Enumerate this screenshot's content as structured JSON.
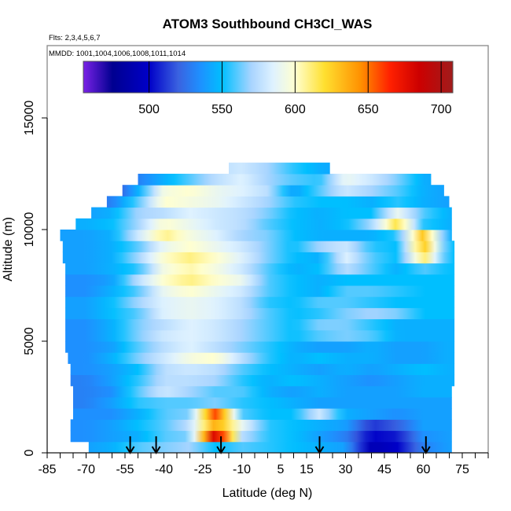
{
  "chart_data": {
    "type": "heatmap",
    "title": "ATOM3 Southbound CH3Cl_WAS",
    "subtitle": "Flts: 2,3,4,5,6,7",
    "annotation": "MMDD: 1001,1004,1006,1008,1011,1014",
    "xlabel": "Latitude (deg N)",
    "ylabel": "Altitude (m)",
    "xlim": [
      -85,
      85
    ],
    "ylim": [
      0,
      18200
    ],
    "xticks": [
      -85,
      -70,
      -55,
      -40,
      -25,
      -10,
      5,
      15,
      30,
      45,
      60,
      75
    ],
    "xminor_step": 5,
    "yticks": [
      0,
      5000,
      10000,
      15000
    ],
    "colorbar": {
      "range": [
        455,
        708
      ],
      "ticks": [
        500,
        550,
        600,
        650,
        700
      ],
      "colors": [
        [
          455,
          "#7a22e6"
        ],
        [
          475,
          "#000090"
        ],
        [
          500,
          "#0000c8"
        ],
        [
          520,
          "#3a62e0"
        ],
        [
          535,
          "#1e90ff"
        ],
        [
          550,
          "#00bfff"
        ],
        [
          570,
          "#a8d4ff"
        ],
        [
          585,
          "#dff2ff"
        ],
        [
          600,
          "#ffffd0"
        ],
        [
          620,
          "#ffe030"
        ],
        [
          645,
          "#ff9000"
        ],
        [
          665,
          "#ff2000"
        ],
        [
          685,
          "#cc0000"
        ],
        [
          708,
          "#a01c1c"
        ]
      ]
    },
    "grid_lats": [
      -80,
      -70,
      -60,
      -50,
      -40,
      -30,
      -20,
      -10,
      0,
      10,
      20,
      30,
      40,
      50,
      60,
      70
    ],
    "altitude_bin_m": 500,
    "rows": [
      {
        "alt": [
          0,
          500
        ],
        "extent": [
          -69,
          71
        ],
        "values": [
          540,
          540,
          545,
          560,
          565,
          570,
          550,
          560,
          555,
          550,
          545,
          540,
          490,
          500,
          530,
          540
        ]
      },
      {
        "alt": [
          500,
          1000
        ],
        "extent": [
          -76,
          71
        ],
        "values": [
          535,
          535,
          540,
          545,
          560,
          565,
          690,
          575,
          555,
          550,
          540,
          530,
          500,
          505,
          535,
          540
        ]
      },
      {
        "alt": [
          1000,
          1500
        ],
        "extent": [
          -76,
          71
        ],
        "values": [
          535,
          535,
          540,
          550,
          560,
          575,
          640,
          590,
          555,
          550,
          545,
          540,
          510,
          520,
          540,
          540
        ]
      },
      {
        "alt": [
          1500,
          2000
        ],
        "extent": [
          -75,
          71
        ],
        "values": [
          535,
          535,
          535,
          545,
          560,
          565,
          660,
          560,
          550,
          550,
          580,
          545,
          540,
          535,
          540,
          540
        ]
      },
      {
        "alt": [
          2000,
          2500
        ],
        "extent": [
          -75,
          71
        ],
        "values": [
          530,
          530,
          540,
          555,
          560,
          560,
          565,
          555,
          550,
          545,
          540,
          540,
          540,
          540,
          540,
          540
        ]
      },
      {
        "alt": [
          2500,
          3000
        ],
        "extent": [
          -75,
          71
        ],
        "values": [
          530,
          530,
          535,
          560,
          580,
          570,
          560,
          560,
          545,
          540,
          545,
          540,
          540,
          540,
          545,
          545
        ]
      },
      {
        "alt": [
          3000,
          3500
        ],
        "extent": [
          -76,
          72
        ],
        "values": [
          530,
          530,
          540,
          555,
          575,
          575,
          570,
          555,
          545,
          550,
          545,
          540,
          535,
          540,
          545,
          545
        ]
      },
      {
        "alt": [
          3500,
          4000
        ],
        "extent": [
          -76,
          72
        ],
        "values": [
          535,
          535,
          540,
          550,
          575,
          580,
          575,
          560,
          550,
          545,
          540,
          545,
          540,
          545,
          550,
          545
        ]
      },
      {
        "alt": [
          4000,
          4500
        ],
        "extent": [
          -77,
          72
        ],
        "values": [
          535,
          535,
          545,
          565,
          580,
          595,
          600,
          575,
          555,
          545,
          550,
          545,
          545,
          540,
          540,
          545
        ]
      },
      {
        "alt": [
          4500,
          5000
        ],
        "extent": [
          -78,
          72
        ],
        "values": [
          535,
          535,
          540,
          560,
          575,
          585,
          575,
          565,
          555,
          545,
          540,
          540,
          545,
          540,
          540,
          545
        ]
      },
      {
        "alt": [
          5000,
          5500
        ],
        "extent": [
          -78,
          72
        ],
        "values": [
          535,
          535,
          545,
          565,
          580,
          585,
          580,
          570,
          560,
          550,
          560,
          565,
          560,
          545,
          545,
          545
        ]
      },
      {
        "alt": [
          5500,
          6000
        ],
        "extent": [
          -78,
          72
        ],
        "values": [
          535,
          535,
          545,
          565,
          575,
          585,
          580,
          570,
          560,
          550,
          565,
          565,
          555,
          545,
          545,
          545
        ]
      },
      {
        "alt": [
          6000,
          6500
        ],
        "extent": [
          -78,
          72
        ],
        "values": [
          540,
          540,
          550,
          560,
          585,
          590,
          585,
          575,
          560,
          550,
          555,
          565,
          570,
          565,
          550,
          550
        ]
      },
      {
        "alt": [
          6500,
          7000
        ],
        "extent": [
          -78,
          72
        ],
        "values": [
          540,
          540,
          550,
          570,
          585,
          590,
          585,
          575,
          555,
          550,
          560,
          560,
          555,
          550,
          550,
          550
        ]
      },
      {
        "alt": [
          7000,
          7500
        ],
        "extent": [
          -78,
          72
        ],
        "values": [
          535,
          535,
          545,
          560,
          590,
          600,
          590,
          580,
          560,
          550,
          545,
          560,
          560,
          555,
          550,
          550
        ]
      },
      {
        "alt": [
          7500,
          8000
        ],
        "extent": [
          -78,
          72
        ],
        "values": [
          535,
          535,
          540,
          575,
          600,
          610,
          600,
          590,
          560,
          550,
          545,
          550,
          550,
          550,
          550,
          550
        ]
      },
      {
        "alt": [
          8000,
          8500
        ],
        "extent": [
          -78,
          72
        ],
        "values": [
          540,
          540,
          545,
          555,
          595,
          605,
          595,
          580,
          560,
          545,
          550,
          575,
          560,
          545,
          560,
          550
        ]
      },
      {
        "alt": [
          8500,
          9000
        ],
        "extent": [
          -79,
          72
        ],
        "values": [
          540,
          540,
          545,
          570,
          600,
          610,
          600,
          585,
          565,
          550,
          545,
          585,
          560,
          550,
          615,
          550
        ]
      },
      {
        "alt": [
          9000,
          9500
        ],
        "extent": [
          -79,
          72
        ],
        "values": [
          540,
          540,
          545,
          560,
          590,
          600,
          590,
          580,
          565,
          550,
          570,
          580,
          555,
          550,
          630,
          550
        ]
      },
      {
        "alt": [
          9500,
          10000
        ],
        "extent": [
          -80,
          71
        ],
        "values": [
          540,
          540,
          545,
          580,
          610,
          595,
          585,
          570,
          565,
          550,
          545,
          545,
          545,
          555,
          630,
          545
        ]
      },
      {
        "alt": [
          10000,
          10500
        ],
        "extent": [
          -74,
          71
        ],
        "values": [
          545,
          545,
          550,
          570,
          600,
          590,
          580,
          575,
          560,
          550,
          545,
          550,
          570,
          620,
          555,
          545
        ]
      },
      {
        "alt": [
          10500,
          11000
        ],
        "extent": [
          -68,
          71
        ],
        "values": [
          540,
          540,
          545,
          570,
          575,
          585,
          580,
          575,
          565,
          550,
          545,
          550,
          550,
          590,
          560,
          545
        ]
      },
      {
        "alt": [
          11000,
          11500
        ],
        "extent": [
          -62,
          70
        ],
        "values": [
          520,
          520,
          530,
          560,
          600,
          595,
          590,
          580,
          570,
          555,
          550,
          550,
          545,
          555,
          545,
          540
        ]
      },
      {
        "alt": [
          11500,
          12000
        ],
        "extent": [
          -56,
          68
        ],
        "values": [
          510,
          510,
          510,
          545,
          595,
          600,
          590,
          585,
          575,
          540,
          560,
          580,
          570,
          560,
          545,
          540
        ]
      },
      {
        "alt": [
          12000,
          12500
        ],
        "extent": [
          -50,
          63
        ],
        "values": [
          530,
          530,
          530,
          530,
          545,
          560,
          575,
          585,
          570,
          560,
          555,
          590,
          580,
          565,
          545,
          540
        ]
      },
      {
        "alt": [
          12500,
          13000
        ],
        "extent": [
          -15,
          24
        ],
        "values": [
          575,
          575,
          575,
          575,
          575,
          575,
          575,
          580,
          570,
          555,
          545,
          540,
          540,
          540,
          540,
          540
        ]
      }
    ],
    "arrows_lat": [
      -53,
      -43,
      -18,
      20,
      61
    ]
  }
}
